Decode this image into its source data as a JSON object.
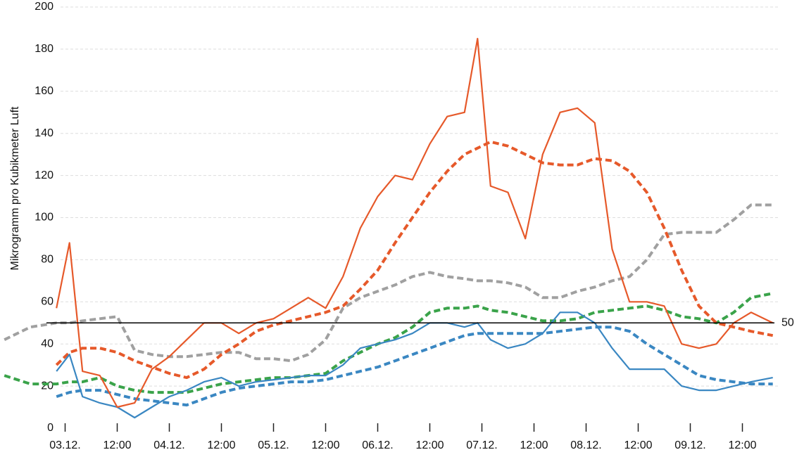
{
  "chart_data": {
    "type": "line",
    "y_label": "Mikrogramm pro Kubikmeter Luft",
    "x": [
      -14,
      -8,
      -2,
      1,
      4,
      8,
      12,
      16,
      20,
      24,
      28,
      32,
      36,
      40,
      44,
      48,
      52,
      56,
      60,
      64,
      68,
      72,
      76,
      80,
      84,
      88,
      92,
      95,
      98,
      102,
      106,
      110,
      114,
      118,
      122,
      126,
      130,
      134,
      138,
      142,
      146,
      150,
      154,
      158,
      163
    ],
    "xlim": [
      -15,
      165
    ],
    "xticks": [
      {
        "value": 0,
        "label": "03.12."
      },
      {
        "value": 12,
        "label": "12:00"
      },
      {
        "value": 24,
        "label": "04.12."
      },
      {
        "value": 36,
        "label": "12:00"
      },
      {
        "value": 48,
        "label": "05.12."
      },
      {
        "value": 60,
        "label": "12:00"
      },
      {
        "value": 72,
        "label": "06.12."
      },
      {
        "value": 84,
        "label": "12:00"
      },
      {
        "value": 96,
        "label": "07.12."
      },
      {
        "value": 108,
        "label": "12:00"
      },
      {
        "value": 120,
        "label": "08.12."
      },
      {
        "value": 132,
        "label": "12:00"
      },
      {
        "value": 144,
        "label": "09.12."
      },
      {
        "value": 156,
        "label": "12:00"
      }
    ],
    "ylim": [
      0,
      200
    ],
    "yticks": [
      0,
      20,
      40,
      60,
      80,
      100,
      120,
      140,
      160,
      180,
      200
    ],
    "grid": true,
    "hline": 50,
    "series": [
      {
        "color": "#a0a0a0",
        "dashed": true,
        "values": [
          42,
          48,
          50,
          50,
          51,
          52,
          53,
          37,
          35,
          34,
          34,
          35,
          36,
          36,
          33,
          33,
          32,
          35,
          42,
          57,
          62,
          65,
          68,
          72,
          74,
          72,
          71,
          70,
          70,
          69,
          67,
          62,
          62,
          65,
          67,
          70,
          72,
          80,
          92,
          93,
          93,
          93,
          99,
          106,
          106
        ]
      },
      {
        "color": "#3aa34a",
        "dashed": true,
        "values": [
          25,
          21,
          21,
          22,
          22,
          24,
          20,
          18,
          17,
          17,
          17,
          19,
          21,
          22,
          23,
          24,
          24,
          25,
          26,
          32,
          36,
          40,
          43,
          48,
          55,
          57,
          57,
          58,
          56,
          55,
          53,
          51,
          51,
          52,
          55,
          56,
          57,
          58,
          56,
          53,
          52,
          50,
          55,
          62,
          64
        ]
      },
      {
        "color": "#3a87c2",
        "dashed": true,
        "values": [
          null,
          null,
          15,
          17,
          18,
          18,
          16,
          14,
          13,
          12,
          11,
          14,
          17,
          19,
          20,
          21,
          22,
          22,
          23,
          25,
          27,
          29,
          32,
          35,
          38,
          41,
          44,
          45,
          45,
          45,
          45,
          45,
          46,
          47,
          48,
          48,
          46,
          40,
          35,
          30,
          25,
          23,
          22,
          21,
          21
        ]
      },
      {
        "color": "#e6592a",
        "dashed": true,
        "values": [
          null,
          null,
          30,
          36,
          38,
          38,
          36,
          32,
          29,
          26,
          24,
          28,
          35,
          40,
          46,
          49,
          51,
          53,
          55,
          58,
          66,
          75,
          88,
          100,
          112,
          122,
          130,
          133,
          136,
          134,
          130,
          126,
          125,
          125,
          128,
          127,
          122,
          112,
          95,
          75,
          58,
          50,
          48,
          46,
          44
        ]
      },
      {
        "color": "#3a87c2",
        "dashed": false,
        "values": [
          null,
          null,
          27,
          35,
          15,
          12,
          10,
          5,
          10,
          15,
          18,
          22,
          24,
          20,
          22,
          23,
          24,
          25,
          25,
          30,
          38,
          40,
          42,
          45,
          50,
          50,
          48,
          50,
          42,
          38,
          40,
          45,
          55,
          55,
          50,
          38,
          28,
          28,
          28,
          20,
          18,
          18,
          20,
          22,
          24
        ]
      },
      {
        "color": "#e6592a",
        "dashed": false,
        "values": [
          null,
          null,
          57,
          88,
          27,
          25,
          10,
          12,
          28,
          34,
          42,
          50,
          50,
          45,
          50,
          52,
          57,
          62,
          57,
          72,
          95,
          110,
          120,
          118,
          135,
          148,
          150,
          185,
          115,
          112,
          90,
          130,
          150,
          152,
          145,
          85,
          60,
          60,
          58,
          40,
          38,
          40,
          50,
          55,
          50
        ]
      }
    ]
  }
}
